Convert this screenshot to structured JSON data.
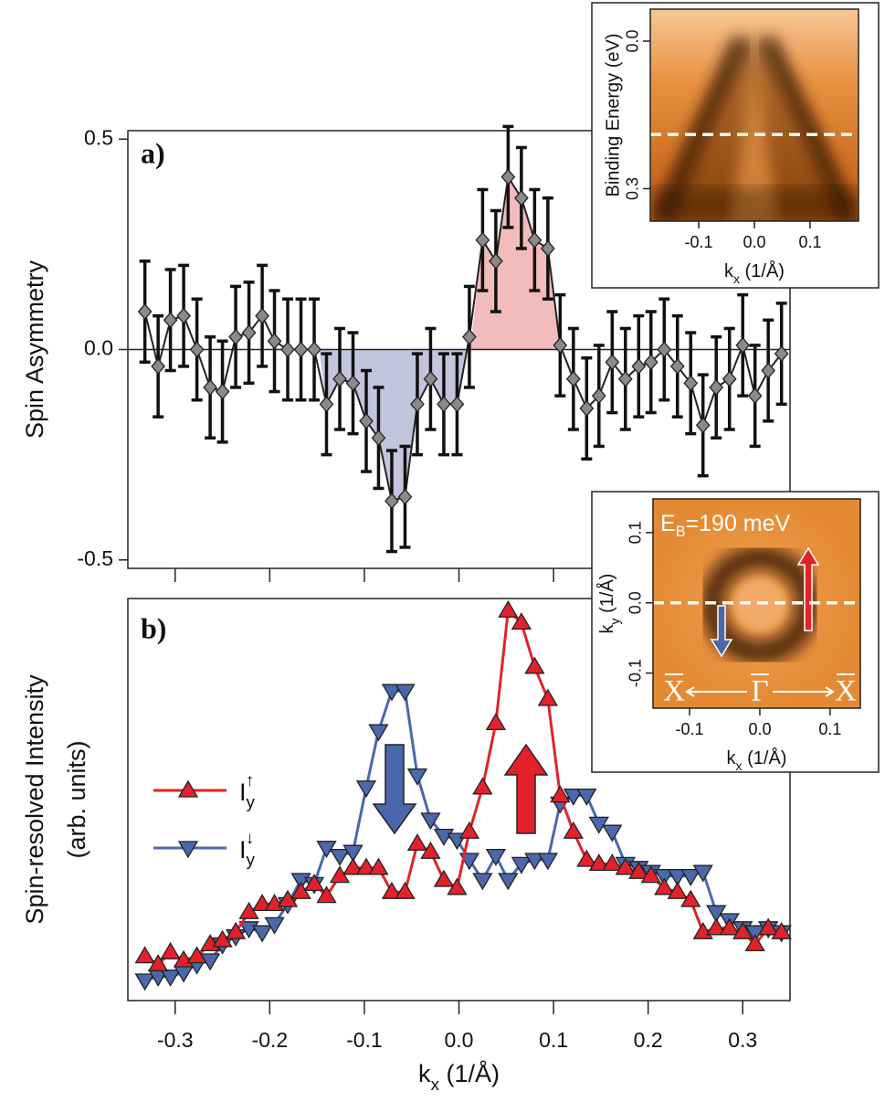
{
  "chart_data": [
    {
      "type": "errorbar",
      "label": "a)",
      "ylabel": "Spin Asymmetry",
      "x": [
        -0.332,
        -0.318,
        -0.305,
        -0.291,
        -0.277,
        -0.263,
        -0.25,
        -0.236,
        -0.222,
        -0.208,
        -0.195,
        -0.181,
        -0.167,
        -0.153,
        -0.14,
        -0.126,
        -0.112,
        -0.098,
        -0.085,
        -0.071,
        -0.057,
        -0.044,
        -0.03,
        -0.016,
        -0.002,
        0.011,
        0.025,
        0.039,
        0.052,
        0.066,
        0.08,
        0.094,
        0.107,
        0.121,
        0.135,
        0.148,
        0.162,
        0.176,
        0.19,
        0.203,
        0.217,
        0.231,
        0.245,
        0.258,
        0.272,
        0.286,
        0.3,
        0.313,
        0.327,
        0.341
      ],
      "values": [
        0.09,
        -0.04,
        0.07,
        0.08,
        0.0,
        -0.09,
        -0.1,
        0.03,
        0.04,
        0.08,
        0.02,
        0.0,
        0.0,
        0.0,
        -0.13,
        -0.07,
        -0.08,
        -0.17,
        -0.21,
        -0.36,
        -0.35,
        -0.13,
        -0.07,
        -0.13,
        -0.13,
        0.03,
        0.26,
        0.21,
        0.41,
        0.36,
        0.26,
        0.24,
        0.01,
        -0.07,
        -0.14,
        -0.11,
        -0.03,
        -0.07,
        -0.04,
        -0.03,
        0.0,
        -0.04,
        -0.08,
        -0.18,
        -0.09,
        -0.07,
        0.01,
        -0.11,
        -0.05,
        -0.01
      ],
      "errors": [
        0.12,
        0.12,
        0.12,
        0.12,
        0.12,
        0.12,
        0.12,
        0.12,
        0.12,
        0.12,
        0.12,
        0.12,
        0.12,
        0.12,
        0.12,
        0.12,
        0.12,
        0.12,
        0.12,
        0.12,
        0.12,
        0.12,
        0.12,
        0.12,
        0.12,
        0.12,
        0.12,
        0.12,
        0.12,
        0.12,
        0.12,
        0.12,
        0.12,
        0.12,
        0.12,
        0.12,
        0.12,
        0.12,
        0.12,
        0.12,
        0.12,
        0.12,
        0.12,
        0.12,
        0.12,
        0.12,
        0.12,
        0.12,
        0.12,
        0.12
      ],
      "color": "#8a8a8a",
      "shade": [
        {
          "range": [
            -0.148,
            0.012
          ],
          "color": "#c4c4de"
        },
        {
          "range": [
            0.012,
            0.107
          ],
          "color": "#f2bcbc"
        }
      ],
      "xlim": [
        -0.35,
        0.35
      ],
      "ylim": [
        -0.52,
        0.52
      ],
      "yticks": [
        -0.5,
        {
          "value": 0,
          "label": "0.0"
        },
        0.5
      ]
    },
    {
      "type": "line",
      "label": "b)",
      "ylabel": [
        "Spin-resolved Intensity",
        "(arb. units)"
      ],
      "xlabel": [
        "k",
        "x",
        " (1/Å)"
      ],
      "x": [
        -0.332,
        -0.318,
        -0.305,
        -0.291,
        -0.277,
        -0.263,
        -0.25,
        -0.236,
        -0.222,
        -0.208,
        -0.195,
        -0.181,
        -0.167,
        -0.153,
        -0.14,
        -0.126,
        -0.112,
        -0.098,
        -0.085,
        -0.071,
        -0.057,
        -0.044,
        -0.03,
        -0.016,
        -0.002,
        0.011,
        0.025,
        0.039,
        0.052,
        0.066,
        0.08,
        0.094,
        0.107,
        0.121,
        0.135,
        0.148,
        0.162,
        0.176,
        0.19,
        0.203,
        0.217,
        0.231,
        0.245,
        0.258,
        0.272,
        0.286,
        0.3,
        0.313,
        0.327,
        0.341
      ],
      "series": [
        {
          "name": "Iy↑",
          "color": "#e3212b",
          "marker": "triangle-up",
          "values": [
            0.11,
            0.09,
            0.12,
            0.1,
            0.11,
            0.14,
            0.15,
            0.17,
            0.22,
            0.24,
            0.24,
            0.25,
            0.27,
            0.29,
            0.26,
            0.31,
            0.33,
            0.33,
            0.33,
            0.27,
            0.27,
            0.39,
            0.37,
            0.3,
            0.28,
            0.42,
            0.53,
            0.69,
            0.97,
            0.94,
            0.83,
            0.75,
            0.51,
            0.42,
            0.35,
            0.34,
            0.34,
            0.33,
            0.32,
            0.31,
            0.28,
            0.27,
            0.25,
            0.17,
            0.18,
            0.18,
            0.17,
            0.14,
            0.18,
            0.17
          ]
        },
        {
          "name": "Iy↓",
          "color": "#4a68ab",
          "marker": "triangle-down",
          "values": [
            0.05,
            0.06,
            0.06,
            0.07,
            0.09,
            0.1,
            0.14,
            0.16,
            0.18,
            0.17,
            0.19,
            0.24,
            0.3,
            0.29,
            0.38,
            0.36,
            0.37,
            0.53,
            0.67,
            0.77,
            0.77,
            0.56,
            0.45,
            0.41,
            0.4,
            0.35,
            0.3,
            0.36,
            0.3,
            0.34,
            0.35,
            0.35,
            0.49,
            0.51,
            0.51,
            0.44,
            0.42,
            0.34,
            0.33,
            0.32,
            0.31,
            0.31,
            0.31,
            0.32,
            0.22,
            0.2,
            0.18,
            0.17,
            0.18,
            0.17
          ]
        }
      ],
      "xlim": [
        -0.35,
        0.35
      ],
      "ylim": [
        0,
        1
      ],
      "xticks": [
        -0.3,
        -0.2,
        -0.1,
        {
          "value": 0,
          "label": "0.0"
        },
        0.1,
        0.2,
        0.3
      ]
    },
    {
      "type": "image",
      "ylabel": "Binding Energy (eV)",
      "xlabel": [
        "k",
        "x",
        " (1/Å)"
      ],
      "xlim": [
        -0.187,
        0.187
      ],
      "ylim": [
        -0.065,
        0.366
      ],
      "y_inverted": true,
      "xticks": [
        -0.1,
        {
          "value": 0,
          "label": "0.0"
        },
        0.1
      ],
      "yticks": [
        {
          "value": 0,
          "label": "0.0"
        },
        0.3
      ],
      "dashed_y": 0.19
    },
    {
      "type": "image",
      "ylabel": [
        "k",
        "y",
        " (1/Å)"
      ],
      "xlabel": [
        "k",
        "x",
        " (1/Å)"
      ],
      "annotation": "EB=190 meV",
      "symmetry_labels": [
        "X",
        "Γ",
        "X"
      ],
      "xlim": [
        -0.152,
        0.143
      ],
      "ylim": [
        -0.15,
        0.148
      ],
      "xticks": [
        -0.1,
        {
          "value": 0,
          "label": "0.0"
        },
        0.1
      ],
      "yticks": [
        -0.1,
        {
          "value": 0,
          "label": "0.0"
        },
        0.1
      ],
      "dashed_y": 0
    }
  ]
}
